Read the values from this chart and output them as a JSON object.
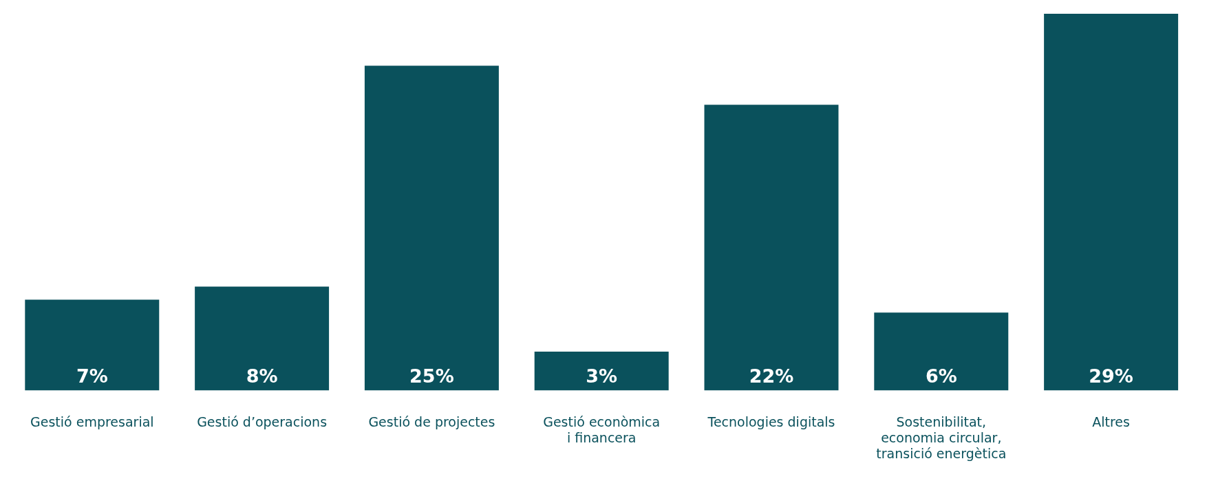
{
  "chart_data": {
    "type": "bar",
    "categories": [
      "Gestió empresarial",
      "Gestió d’operacions",
      "Gestió de projectes",
      "Gestió econòmica\ni financera",
      "Tecnologies digitals",
      "Sostenibilitat,\neconomia circular,\ntransició energètica",
      "Altres"
    ],
    "values": [
      7,
      8,
      25,
      3,
      22,
      6,
      29
    ],
    "value_labels": [
      "7%",
      "8%",
      "25%",
      "3%",
      "22%",
      "6%",
      "29%"
    ],
    "color": "#0a515c",
    "grid": false,
    "legend": false
  }
}
